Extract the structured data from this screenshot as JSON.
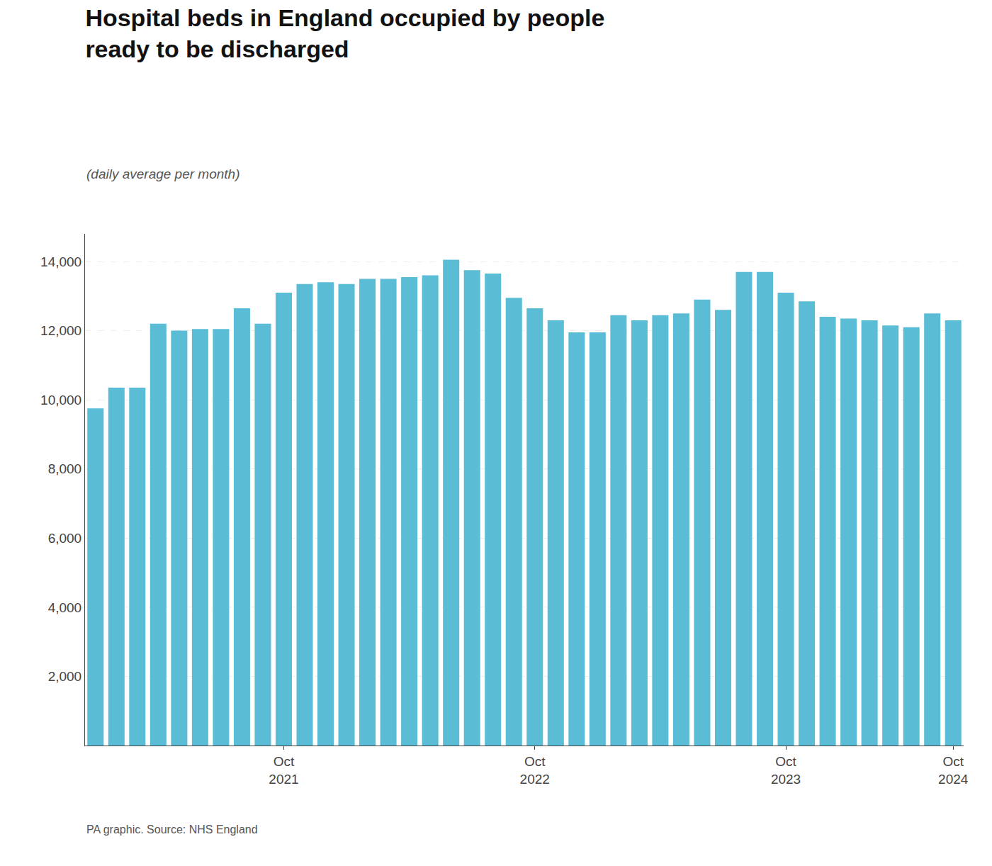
{
  "chart_data": {
    "type": "bar",
    "title": "Hospital beds in England occupied by people\nready to be discharged",
    "subtitle": "(daily average per month)",
    "annotations": [
      "PA graphic. Source: NHS England"
    ],
    "categories": [
      null,
      null,
      null,
      null,
      null,
      null,
      null,
      null,
      null,
      "Oct\n2021",
      null,
      null,
      null,
      null,
      null,
      null,
      null,
      null,
      null,
      null,
      null,
      "Oct\n2022",
      null,
      null,
      null,
      null,
      null,
      null,
      null,
      null,
      null,
      null,
      null,
      "Oct\n2023",
      null,
      null,
      null,
      null,
      null,
      null,
      null,
      "Oct\n2024"
    ],
    "values": [
      9750,
      10350,
      10350,
      12200,
      12000,
      12050,
      12050,
      12650,
      12200,
      13100,
      13350,
      13400,
      13350,
      13500,
      13500,
      13550,
      13600,
      14050,
      13750,
      13650,
      12950,
      12650,
      12300,
      11950,
      11950,
      12450,
      12300,
      12450,
      12500,
      12900,
      12600,
      13700,
      13700,
      13100,
      12850,
      12400,
      12350,
      12300,
      12150,
      12100,
      12500,
      12300
    ],
    "color": "#5bbcd6",
    "ylim": [
      0,
      14800
    ],
    "yticks": [
      {
        "value": 2000,
        "label": "2,000"
      },
      {
        "value": 4000,
        "label": "4,000"
      },
      {
        "value": 6000,
        "label": "6,000"
      },
      {
        "value": 8000,
        "label": "8,000"
      },
      {
        "value": 10000,
        "label": "10,000"
      },
      {
        "value": 12000,
        "label": "12,000"
      },
      {
        "value": 14000,
        "label": "14,000"
      }
    ],
    "grid": true
  }
}
